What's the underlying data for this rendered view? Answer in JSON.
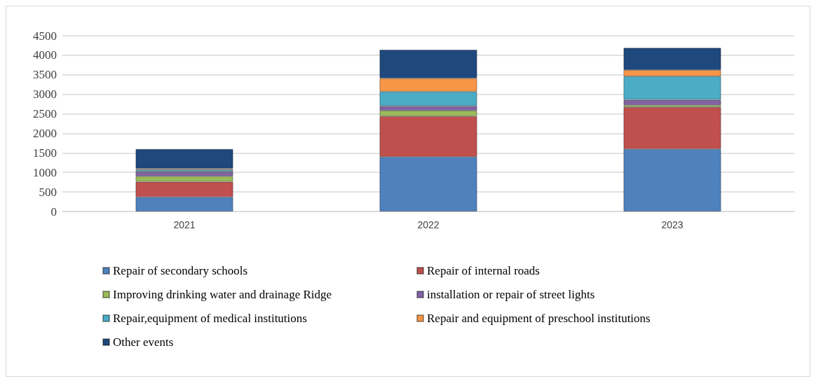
{
  "chart_data": {
    "type": "bar",
    "stacked": true,
    "categories": [
      "2021",
      "2022",
      "2023"
    ],
    "series": [
      {
        "name": "Repair of secondary schools",
        "color": "#4f81bd",
        "values": [
          370,
          1400,
          1600
        ]
      },
      {
        "name": "Repair of internal roads",
        "color": "#c0504d",
        "values": [
          390,
          1040,
          1070
        ]
      },
      {
        "name": "Improving drinking water and drainage Ridge",
        "color": "#9bbb59",
        "values": [
          140,
          140,
          50
        ]
      },
      {
        "name": "installation or repair of street lights",
        "color": "#8064a2",
        "values": [
          120,
          120,
          140
        ]
      },
      {
        "name": "Repair,equipment of medical institutions",
        "color": "#4bacc6",
        "values": [
          50,
          370,
          600
        ]
      },
      {
        "name": "Repair and equipment of preschool institutions",
        "color": "#f79646",
        "values": [
          30,
          340,
          160
        ]
      },
      {
        "name": "Other events",
        "color": "#1f497d",
        "values": [
          500,
          730,
          570
        ]
      }
    ],
    "ylim": [
      0,
      4500
    ],
    "yticks": [
      0,
      500,
      1000,
      1500,
      2000,
      2500,
      3000,
      3500,
      4000,
      4500
    ],
    "grid": "y",
    "legend": "bottom"
  }
}
